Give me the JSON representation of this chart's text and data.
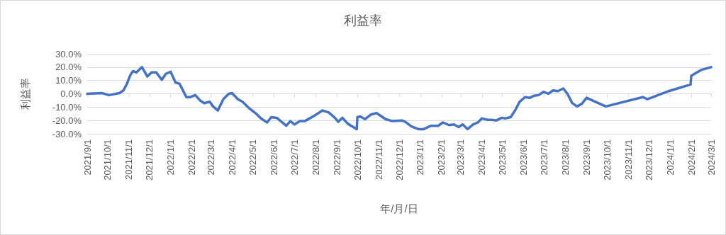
{
  "chart_data": {
    "type": "line",
    "title": "利益率",
    "xlabel": "年/月/日",
    "ylabel": "利益率",
    "x": [
      "2021-09-01",
      "2021-09-23",
      "2021-10-03",
      "2021-10-18",
      "2021-10-24",
      "2021-10-29",
      "2021-11-03",
      "2021-11-07",
      "2021-11-12",
      "2021-11-20",
      "2021-11-28",
      "2021-12-04",
      "2021-12-11",
      "2021-12-19",
      "2021-12-25",
      "2022-01-01",
      "2022-01-08",
      "2022-01-14",
      "2022-01-24",
      "2022-01-30",
      "2022-02-06",
      "2022-02-13",
      "2022-02-19",
      "2022-02-27",
      "2022-03-04",
      "2022-03-11",
      "2022-03-19",
      "2022-03-27",
      "2022-04-01",
      "2022-04-09",
      "2022-04-16",
      "2022-04-25",
      "2022-05-05",
      "2022-05-13",
      "2022-05-22",
      "2022-05-28",
      "2022-06-05",
      "2022-06-19",
      "2022-06-25",
      "2022-07-01",
      "2022-07-09",
      "2022-07-16",
      "2022-07-30",
      "2022-08-11",
      "2022-08-20",
      "2022-08-29",
      "2022-09-03",
      "2022-09-09",
      "2022-09-17",
      "2022-09-30",
      "2022-10-01",
      "2022-10-05",
      "2022-10-12",
      "2022-10-21",
      "2022-10-29",
      "2022-11-11",
      "2022-11-21",
      "2022-12-05",
      "2022-12-10",
      "2022-12-19",
      "2022-12-29",
      "2023-01-06",
      "2023-01-16",
      "2023-01-27",
      "2023-02-03",
      "2023-02-12",
      "2023-02-19",
      "2023-02-26",
      "2023-03-04",
      "2023-03-11",
      "2023-03-19",
      "2023-03-26",
      "2023-04-01",
      "2023-04-09",
      "2023-04-15",
      "2023-04-22",
      "2023-04-30",
      "2023-05-05",
      "2023-05-13",
      "2023-05-20",
      "2023-05-26",
      "2023-06-03",
      "2023-06-10",
      "2023-06-16",
      "2023-06-23",
      "2023-06-30",
      "2023-07-07",
      "2023-07-14",
      "2023-07-21",
      "2023-07-29",
      "2023-08-04",
      "2023-08-11",
      "2023-08-18",
      "2023-08-25",
      "2023-09-01",
      "2023-09-14",
      "2023-09-29",
      "2023-11-22",
      "2023-11-29",
      "2023-12-30",
      "2024-01-31",
      "2024-02-01",
      "2024-02-16",
      "2024-03-01"
    ],
    "series": [
      {
        "color": "#4472c4",
        "values": [
          0,
          0.5,
          -1,
          0.5,
          2.5,
          7.5,
          14,
          17,
          16,
          20,
          13,
          16,
          16,
          10.5,
          15,
          16.5,
          8.5,
          7.5,
          -2.5,
          -2.5,
          -1,
          -5,
          -7,
          -6,
          -9.5,
          -12.5,
          -4,
          0,
          0.5,
          -4,
          -6,
          -10.5,
          -14.5,
          -18.5,
          -21.5,
          -17.5,
          -18,
          -24,
          -20.5,
          -23,
          -20.5,
          -20.5,
          -16.5,
          -12.5,
          -14,
          -18,
          -21,
          -18,
          -22.5,
          -26.5,
          -17.5,
          -17,
          -19,
          -15.5,
          -14.5,
          -19,
          -20.5,
          -20,
          -21,
          -24.5,
          -26.5,
          -26.5,
          -24,
          -24,
          -21.5,
          -23.5,
          -23,
          -25,
          -23,
          -26.5,
          -23,
          -21.5,
          -18.5,
          -19.5,
          -19.5,
          -20,
          -18,
          -18.5,
          -17.5,
          -12,
          -6,
          -2.5,
          -3,
          -1.5,
          -1,
          1.5,
          0,
          2.5,
          2,
          4,
          0,
          -7,
          -9.5,
          -7.5,
          -3,
          -6,
          -9.5,
          -2.5,
          -4,
          2,
          7,
          13.5,
          18,
          20
        ]
      }
    ],
    "xlim": [
      "2021-09-01",
      "2024-03-01"
    ],
    "xticks": [
      {
        "value": "2021-09-01",
        "label": "2021/9/1"
      },
      {
        "value": "2021-10-01",
        "label": "2021/10/1"
      },
      {
        "value": "2021-11-01",
        "label": "2021/11/1"
      },
      {
        "value": "2021-12-01",
        "label": "2021/12/1"
      },
      {
        "value": "2022-01-01",
        "label": "2022/1/1"
      },
      {
        "value": "2022-02-01",
        "label": "2022/2/1"
      },
      {
        "value": "2022-03-01",
        "label": "2022/3/1"
      },
      {
        "value": "2022-04-01",
        "label": "2022/4/1"
      },
      {
        "value": "2022-05-01",
        "label": "2022/5/1"
      },
      {
        "value": "2022-06-01",
        "label": "2022/6/1"
      },
      {
        "value": "2022-07-01",
        "label": "2022/7/1"
      },
      {
        "value": "2022-08-01",
        "label": "2022/8/1"
      },
      {
        "value": "2022-09-01",
        "label": "2022/9/1"
      },
      {
        "value": "2022-10-01",
        "label": "2022/10/1"
      },
      {
        "value": "2022-11-01",
        "label": "2022/11/1"
      },
      {
        "value": "2022-12-01",
        "label": "2022/12/1"
      },
      {
        "value": "2023-01-01",
        "label": "2023/1/1"
      },
      {
        "value": "2023-02-01",
        "label": "2023/2/1"
      },
      {
        "value": "2023-03-01",
        "label": "2023/3/1"
      },
      {
        "value": "2023-04-01",
        "label": "2023/4/1"
      },
      {
        "value": "2023-05-01",
        "label": "2023/5/1"
      },
      {
        "value": "2023-06-01",
        "label": "2023/6/1"
      },
      {
        "value": "2023-07-01",
        "label": "2023/7/1"
      },
      {
        "value": "2023-08-01",
        "label": "2023/8/1"
      },
      {
        "value": "2023-09-01",
        "label": "2023/9/1"
      },
      {
        "value": "2023-10-01",
        "label": "2023/10/1"
      },
      {
        "value": "2023-11-01",
        "label": "2023/11/1"
      },
      {
        "value": "2023-12-01",
        "label": "2023/12/1"
      },
      {
        "value": "2024-01-01",
        "label": "2024/1/1"
      },
      {
        "value": "2024-02-01",
        "label": "2024/2/1"
      },
      {
        "value": "2024-03-01",
        "label": "2024/3/1"
      }
    ],
    "ylim": [
      -30,
      30
    ],
    "yticks": [
      {
        "value": -30,
        "label": "-30.0%"
      },
      {
        "value": -20,
        "label": "-20.0%"
      },
      {
        "value": -10,
        "label": "-10.0%"
      },
      {
        "value": 0,
        "label": "0.0%"
      },
      {
        "value": 10,
        "label": "10.0%"
      },
      {
        "value": 20,
        "label": "20.0%"
      },
      {
        "value": 30,
        "label": "30.0%"
      }
    ],
    "grid": "y",
    "marker": "none",
    "line_style": "solid"
  }
}
